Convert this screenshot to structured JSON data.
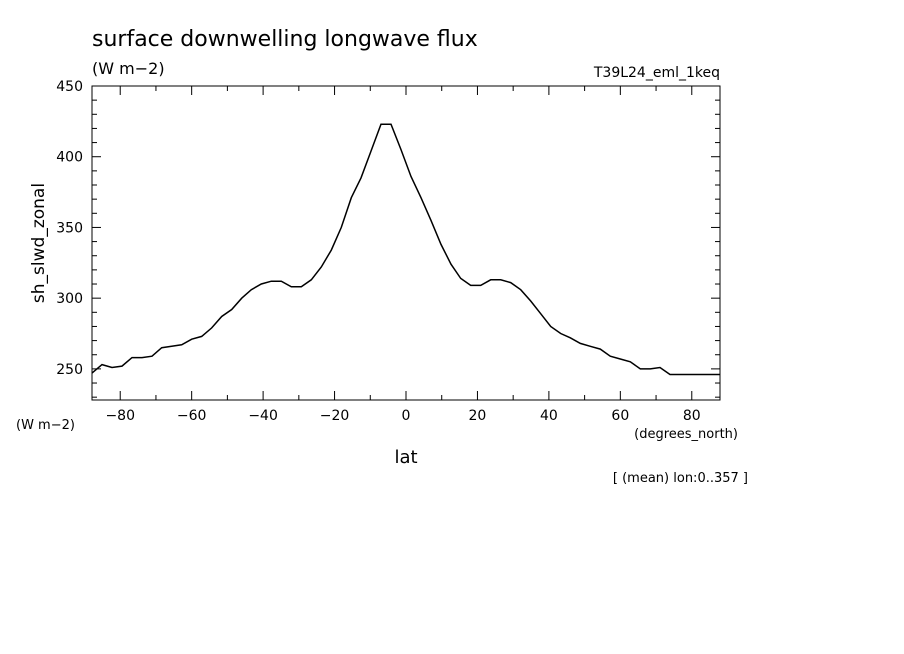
{
  "chart_data": {
    "type": "line",
    "title": "surface downwelling longwave flux",
    "subtitle": "(W m−2)",
    "run_label": "T39L24_eml_1keq",
    "ylabel": "sh_slwd_zonal",
    "y_unit_label": "(W m−2)",
    "xlabel": "lat",
    "x_unit_label": "(degrees_north)",
    "footnote": "[ (mean) lon:0..357 ]",
    "xlim": [
      -87.9,
      87.9
    ],
    "ylim": [
      228,
      450
    ],
    "x_ticks": [
      -80,
      -60,
      -40,
      -20,
      0,
      20,
      40,
      60,
      80
    ],
    "y_ticks": [
      250,
      300,
      350,
      400,
      450
    ],
    "grid": false,
    "series": [
      {
        "x": [
          -87.9,
          -85.1,
          -82.3,
          -79.5,
          -76.7,
          -73.9,
          -71.1,
          -68.4,
          -65.6,
          -62.8,
          -60.0,
          -57.2,
          -54.4,
          -51.6,
          -48.8,
          -46.0,
          -43.3,
          -40.5,
          -37.7,
          -34.9,
          -32.1,
          -29.3,
          -26.5,
          -23.7,
          -20.9,
          -18.1,
          -15.3,
          -12.6,
          -9.8,
          -7.0,
          -4.2,
          -1.4,
          1.4,
          4.2,
          7.0,
          9.8,
          12.6,
          15.3,
          18.1,
          20.9,
          23.7,
          26.5,
          29.3,
          32.1,
          34.9,
          37.7,
          40.5,
          43.3,
          46.0,
          48.8,
          51.6,
          54.4,
          57.2,
          60.0,
          62.8,
          65.6,
          68.4,
          71.1,
          73.9,
          76.7,
          79.5,
          82.3,
          85.1,
          87.9
        ],
        "y": [
          247,
          253,
          251,
          252,
          258,
          258,
          259,
          265,
          266,
          267,
          271,
          273,
          279,
          287,
          292,
          300,
          306,
          310,
          312,
          312,
          308,
          308,
          313,
          322,
          334,
          350,
          371,
          385,
          404,
          423,
          423,
          405,
          386,
          371,
          355,
          338,
          324,
          314,
          309,
          309,
          313,
          313,
          311,
          306,
          298,
          289,
          280,
          275,
          272,
          268,
          266,
          264,
          259,
          257,
          255,
          250,
          250,
          251,
          246,
          246,
          246,
          246,
          246,
          246
        ]
      }
    ]
  }
}
